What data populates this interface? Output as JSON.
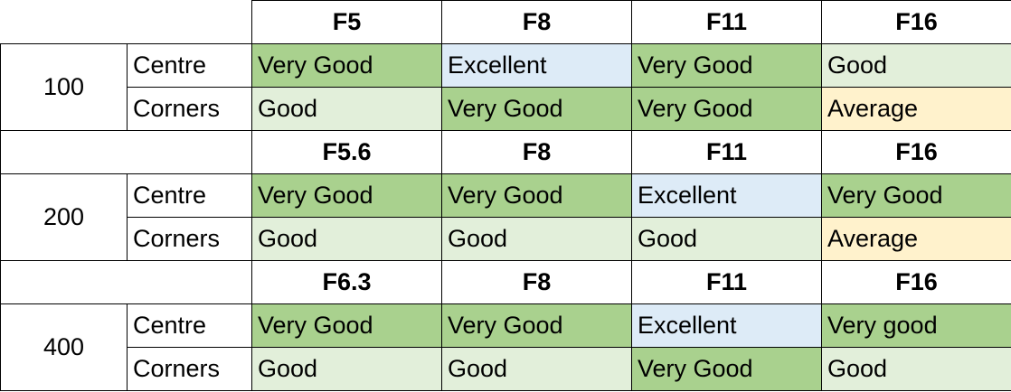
{
  "blocks": [
    {
      "iso": "100",
      "apertures": [
        "F5",
        "F8",
        "F11",
        "F16"
      ],
      "rows": [
        {
          "label": "Centre",
          "cells": [
            "Very Good",
            "Excellent",
            "Very Good",
            "Good"
          ]
        },
        {
          "label": "Corners",
          "cells": [
            "Good",
            "Very Good",
            "Very Good",
            "Average"
          ]
        }
      ]
    },
    {
      "iso": "200",
      "apertures": [
        "F5.6",
        "F8",
        "F11",
        "F16"
      ],
      "rows": [
        {
          "label": "Centre",
          "cells": [
            "Very Good",
            "Very Good",
            "Excellent",
            "Very Good"
          ]
        },
        {
          "label": "Corners",
          "cells": [
            "Good",
            "Good",
            "Good",
            "Average"
          ]
        }
      ]
    },
    {
      "iso": "400",
      "apertures": [
        "F6.3",
        "F8",
        "F11",
        "F16"
      ],
      "rows": [
        {
          "label": "Centre",
          "cells": [
            "Very Good",
            "Very Good",
            "Excellent",
            "Very good"
          ]
        },
        {
          "label": "Corners",
          "cells": [
            "Good",
            "Good",
            "Very Good",
            "Good"
          ]
        }
      ]
    }
  ],
  "rating_colors": {
    "Very Good": "#a9d18e",
    "Very good": "#a9d18e",
    "Good": "#e2efda",
    "Excellent": "#ddebf7",
    "Average": "#fff2cc"
  }
}
